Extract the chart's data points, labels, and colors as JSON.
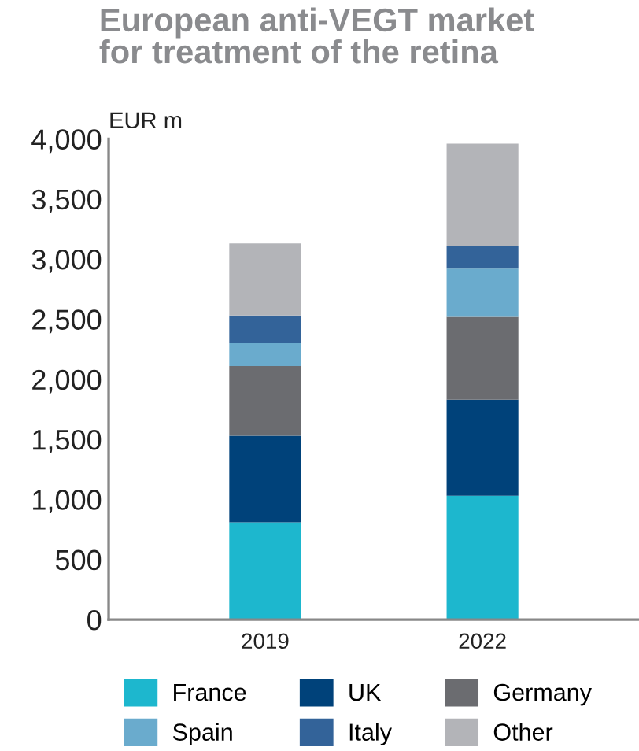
{
  "chart_data": {
    "type": "bar",
    "stacked": true,
    "title": "European anti-VEGT market\nfor treatment of the retina",
    "ylabel": "EUR m",
    "categories": [
      "2019",
      "2022"
    ],
    "series": [
      {
        "name": "France",
        "color": "#1db7ce",
        "values": [
          810,
          1030
        ]
      },
      {
        "name": "UK",
        "color": "#00427a",
        "values": [
          720,
          800
        ]
      },
      {
        "name": "Germany",
        "color": "#6b6c70",
        "values": [
          580,
          690
        ]
      },
      {
        "name": "Spain",
        "color": "#6aabcd",
        "values": [
          190,
          400
        ]
      },
      {
        "name": "Italy",
        "color": "#336399",
        "values": [
          230,
          190
        ]
      },
      {
        "name": "Other",
        "color": "#b3b4b8",
        "values": [
          600,
          850
        ]
      }
    ],
    "ylim": [
      0,
      4000
    ],
    "yticks": [
      {
        "value": 0,
        "label": "0"
      },
      {
        "value": 500,
        "label": "500"
      },
      {
        "value": 1000,
        "label": "1,000"
      },
      {
        "value": 1500,
        "label": "1,500"
      },
      {
        "value": 2000,
        "label": "2,000"
      },
      {
        "value": 2500,
        "label": "2,500"
      },
      {
        "value": 3000,
        "label": "3,000"
      },
      {
        "value": 3500,
        "label": "3,500"
      },
      {
        "value": 4000,
        "label": "4,000"
      }
    ],
    "grid": false,
    "legend": "bottom"
  }
}
